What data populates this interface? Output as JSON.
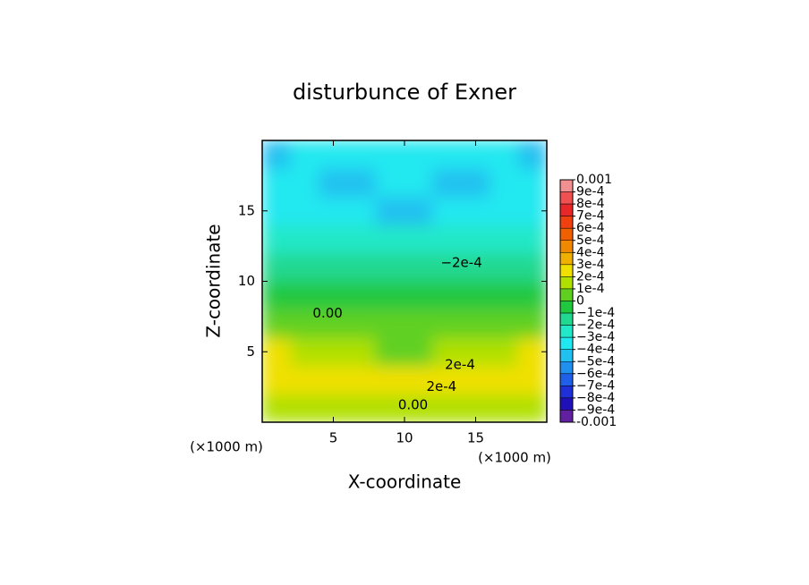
{
  "chart_data": {
    "type": "contour",
    "title": "disturbunce of Exner",
    "xlabel": "X-coordinate",
    "ylabel": "Z-coordinate",
    "x_unit": "(×1000 m)",
    "y_unit": "(×1000 m)",
    "xlim": [
      0,
      20
    ],
    "ylim": [
      0,
      20
    ],
    "xticks": [
      5,
      10,
      15
    ],
    "yticks": [
      5,
      10,
      15
    ],
    "z": [
      [
        0.00015,
        0.00012,
        0.00015,
        0.00012,
        0.00015,
        0.00015,
        0.00012,
        0.00015,
        0.00012,
        0.00015
      ],
      [
        0.00025,
        0.00022,
        0.00025,
        0.00025,
        0.00028,
        0.00028,
        0.00025,
        0.00025,
        0.00022,
        0.00025
      ],
      [
        0.00022,
        0.00018,
        0.00015,
        0.00015,
        8e-05,
        8e-05,
        0.00015,
        0.00015,
        0.00018,
        0.00022
      ],
      [
        5e-05,
        2e-05,
        5e-05,
        5e-05,
        2e-05,
        2e-05,
        5e-05,
        5e-05,
        2e-05,
        5e-05
      ],
      [
        -5e-05,
        -5e-05,
        -6e-05,
        -6e-05,
        -2e-05,
        -2e-05,
        -6e-05,
        -6e-05,
        -5e-05,
        -5e-05
      ],
      [
        -0.00015,
        -0.00012,
        -0.00012,
        -0.00012,
        -0.00012,
        -0.00012,
        -0.00012,
        -0.00012,
        -0.00012,
        -0.00015
      ],
      [
        -0.00025,
        -0.00025,
        -0.00022,
        -0.00022,
        -0.00022,
        -0.00022,
        -0.00022,
        -0.00022,
        -0.00025,
        -0.00025
      ],
      [
        -0.00035,
        -0.00035,
        -0.00032,
        -0.00035,
        -0.00042,
        -0.00042,
        -0.00035,
        -0.00032,
        -0.00035,
        -0.00035
      ],
      [
        -0.00035,
        -0.00038,
        -0.00042,
        -0.00042,
        -0.00035,
        -0.00035,
        -0.00042,
        -0.00042,
        -0.00038,
        -0.00035
      ],
      [
        -0.00048,
        -0.00038,
        -0.00035,
        -0.00035,
        -0.00035,
        -0.00035,
        -0.00035,
        -0.00035,
        -0.00038,
        -0.00048
      ]
    ],
    "levels": [
      0.001,
      {
        "value": 0.0009,
        "label": "9e-4"
      },
      {
        "value": 0.0008,
        "label": "8e-4"
      },
      {
        "value": 0.0007,
        "label": "7e-4"
      },
      {
        "value": 0.0006,
        "label": "6e-4"
      },
      {
        "value": 0.0005,
        "label": "5e-4"
      },
      {
        "value": 0.0004,
        "label": "4e-4"
      },
      {
        "value": 0.0003,
        "label": "3e-4"
      },
      {
        "value": 0.0002,
        "label": "2e-4"
      },
      {
        "value": 0.0001,
        "label": "1e-4"
      },
      0,
      {
        "value": -0.0001,
        "label": "−1e-4"
      },
      {
        "value": -0.0002,
        "label": "−2e-4"
      },
      {
        "value": -0.0003,
        "label": "−3e-4"
      },
      {
        "value": -0.0004,
        "label": "−4e-4"
      },
      {
        "value": -0.0005,
        "label": "−5e-4"
      },
      {
        "value": -0.0006,
        "label": "−6e-4"
      },
      {
        "value": -0.0007,
        "label": "−7e-4"
      },
      {
        "value": -0.0008,
        "label": "−8e-4"
      },
      {
        "value": -0.0009,
        "label": "−9e-4"
      },
      -0.001
    ],
    "colors": [
      "#f09090",
      "#f05050",
      "#e82828",
      "#f04010",
      "#f06000",
      "#f08800",
      "#f0b000",
      "#f0e000",
      "#b0e000",
      "#60d020",
      "#20c840",
      "#20d890",
      "#20e8c8",
      "#20e8f0",
      "#20c0f0",
      "#2090f0",
      "#2060e8",
      "#2030d8",
      "#2010b8",
      "#6020a0"
    ],
    "annotations": [
      {
        "text": "−2e-4",
        "x": 14,
        "y": 11.3
      },
      {
        "text": "0.00",
        "x": 4.6,
        "y": 7.7
      },
      {
        "text": "2e-4",
        "x": 13.9,
        "y": 4.05
      },
      {
        "text": "2e-4",
        "x": 12.6,
        "y": 2.5
      },
      {
        "text": "0.00",
        "x": 10.6,
        "y": 1.2
      }
    ]
  }
}
